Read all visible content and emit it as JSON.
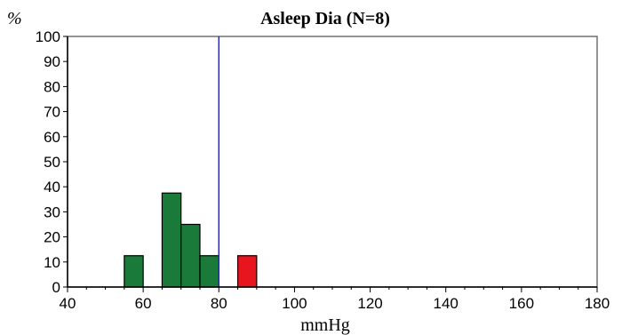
{
  "chart_data": {
    "type": "bar",
    "title": "Asleep Dia (N=8)",
    "ylabel": "%",
    "xlabel": "mmHg",
    "xlim": [
      40,
      180
    ],
    "ylim": [
      0,
      100
    ],
    "x_ticks": [
      40,
      60,
      80,
      100,
      120,
      140,
      160,
      180
    ],
    "y_ticks": [
      0,
      10,
      20,
      30,
      40,
      50,
      60,
      70,
      80,
      90,
      100
    ],
    "bin_width": 5,
    "threshold": 80,
    "grid": false,
    "bars": [
      {
        "x_start": 55,
        "x_end": 60,
        "value": 12.5,
        "color": "#1a7a3a"
      },
      {
        "x_start": 65,
        "x_end": 70,
        "value": 37.5,
        "color": "#1a7a3a"
      },
      {
        "x_start": 70,
        "x_end": 75,
        "value": 25,
        "color": "#1a7a3a"
      },
      {
        "x_start": 75,
        "x_end": 80,
        "value": 12.5,
        "color": "#1a7a3a"
      },
      {
        "x_start": 85,
        "x_end": 90,
        "value": 12.5,
        "color": "#e8141e"
      }
    ],
    "colors": {
      "normal": "#1a7a3a",
      "elevated": "#e8141e",
      "threshold_line": "#2b2bb0"
    }
  }
}
